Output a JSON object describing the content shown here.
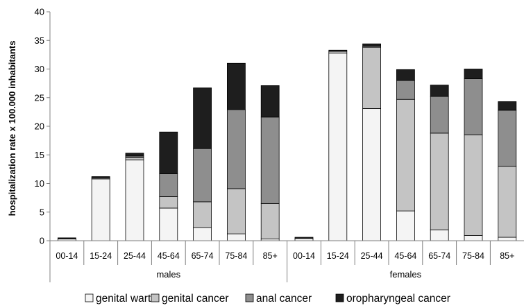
{
  "chart_data": {
    "type": "bar",
    "stacked": true,
    "ylabel": "hospitalization rate x 100.000 inhabitants",
    "xlabel": "",
    "ylim": [
      0,
      40
    ],
    "yticks": [
      0,
      5,
      10,
      15,
      20,
      25,
      30,
      35,
      40
    ],
    "groups": [
      {
        "name": "males",
        "categories": [
          "00-14",
          "15-24",
          "25-44",
          "45-64",
          "65-74",
          "75-84",
          "85+"
        ],
        "series": [
          {
            "name": "genital warts",
            "values": [
              0.3,
              10.8,
              14.1,
              5.7,
              2.3,
              1.2,
              0.3
            ]
          },
          {
            "name": "genital cancer",
            "values": [
              0.0,
              0.0,
              0.4,
              2.0,
              4.5,
              7.9,
              6.2
            ]
          },
          {
            "name": "anal cancer",
            "values": [
              0.0,
              0.2,
              0.3,
              4.0,
              9.3,
              13.8,
              15.1
            ]
          },
          {
            "name": "oropharyngeal cancer",
            "values": [
              0.2,
              0.2,
              0.5,
              7.3,
              10.6,
              8.1,
              5.5
            ]
          }
        ]
      },
      {
        "name": "females",
        "categories": [
          "00-14",
          "15-24",
          "25-44",
          "45-64",
          "65-74",
          "75-84",
          "85+"
        ],
        "series": [
          {
            "name": "genital warts",
            "values": [
              0.4,
              32.8,
              23.1,
              5.2,
              1.9,
              0.9,
              0.6
            ]
          },
          {
            "name": "genital cancer",
            "values": [
              0.0,
              0.3,
              10.7,
              19.5,
              16.9,
              17.6,
              12.4
            ]
          },
          {
            "name": "anal cancer",
            "values": [
              0.0,
              0.0,
              0.2,
              3.3,
              6.4,
              9.8,
              9.8
            ]
          },
          {
            "name": "oropharyngeal cancer",
            "values": [
              0.2,
              0.2,
              0.4,
              1.9,
              2.0,
              1.7,
              1.5
            ]
          }
        ]
      }
    ],
    "legend": {
      "placement": "bottom",
      "entries": [
        "genital warts",
        "genital cancer",
        "anal cancer",
        "oropharyngeal cancer"
      ]
    },
    "series_colors": [
      "#f4f4f4",
      "#c4c4c4",
      "#8e8e8e",
      "#1e1e1e"
    ],
    "grid": false
  }
}
